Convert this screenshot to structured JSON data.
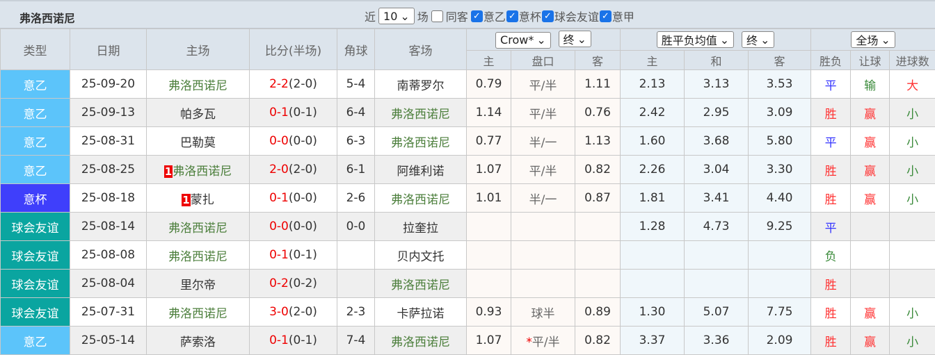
{
  "title": "弗洛西诺尼",
  "filters": {
    "recent_label": "近",
    "recent_value": "10",
    "games_label": "场",
    "same_label": "同客",
    "leagues": [
      "意乙",
      "意杯",
      "球会友谊",
      "意甲"
    ]
  },
  "headers": {
    "type": "类型",
    "date": "日期",
    "home": "主场",
    "score": "比分(半场)",
    "corner": "角球",
    "away": "客场",
    "asian_company": "Crow*",
    "asian_stage": "终",
    "euro_type": "胜平负均值",
    "euro_stage": "终",
    "result_scope": "全场",
    "asian_cols": [
      "主",
      "盘口",
      "客"
    ],
    "euro_cols": [
      "主",
      "和",
      "客"
    ],
    "result_cols": [
      "胜负",
      "让球",
      "进球数"
    ]
  },
  "colors": {
    "意乙": "#5cc4fa",
    "意杯": "#3f3ffb",
    "球会友谊": "#0aa5a0",
    "team": "#4c7f3c"
  },
  "rows": [
    {
      "type": "意乙",
      "date": "25-09-20",
      "home": "弗洛西诺尼",
      "home_flag": "",
      "score": "2-2",
      "half": "(2-0)",
      "corner": "5-4",
      "away": "南蒂罗尔",
      "a1": "0.79",
      "line": "平/半",
      "a2": "1.11",
      "e1": "2.13",
      "e2": "3.13",
      "e3": "3.53",
      "wl": "平",
      "hc": "输",
      "ou": "大"
    },
    {
      "type": "意乙",
      "date": "25-09-13",
      "home": "帕多瓦",
      "home_flag": "",
      "score": "0-1",
      "half": "(0-1)",
      "corner": "6-4",
      "away": "弗洛西诺尼",
      "a1": "1.14",
      "line": "平/半",
      "a2": "0.76",
      "e1": "2.42",
      "e2": "2.95",
      "e3": "3.09",
      "wl": "胜",
      "hc": "赢",
      "ou": "小"
    },
    {
      "type": "意乙",
      "date": "25-08-31",
      "home": "巴勒莫",
      "home_flag": "",
      "score": "0-0",
      "half": "(0-0)",
      "corner": "6-3",
      "away": "弗洛西诺尼",
      "a1": "0.77",
      "line": "半/一",
      "a2": "1.13",
      "e1": "1.60",
      "e2": "3.68",
      "e3": "5.80",
      "wl": "平",
      "hc": "赢",
      "ou": "小"
    },
    {
      "type": "意乙",
      "date": "25-08-25",
      "home": "弗洛西诺尼",
      "home_flag": "1",
      "score": "2-0",
      "half": "(2-0)",
      "corner": "6-1",
      "away": "阿维利诺",
      "a1": "1.07",
      "line": "平/半",
      "a2": "0.82",
      "e1": "2.26",
      "e2": "3.04",
      "e3": "3.30",
      "wl": "胜",
      "hc": "赢",
      "ou": "小"
    },
    {
      "type": "意杯",
      "date": "25-08-18",
      "home": "蒙扎",
      "home_flag": "1",
      "score": "0-1",
      "half": "(0-0)",
      "corner": "2-6",
      "away": "弗洛西诺尼",
      "a1": "1.01",
      "line": "半/一",
      "a2": "0.87",
      "e1": "1.81",
      "e2": "3.41",
      "e3": "4.40",
      "wl": "胜",
      "hc": "赢",
      "ou": "小"
    },
    {
      "type": "球会友谊",
      "date": "25-08-14",
      "home": "弗洛西诺尼",
      "home_flag": "",
      "score": "0-0",
      "half": "(0-0)",
      "corner": "0-0",
      "away": "拉奎拉",
      "a1": "",
      "line": "",
      "a2": "",
      "e1": "1.28",
      "e2": "4.73",
      "e3": "9.25",
      "wl": "平",
      "hc": "",
      "ou": ""
    },
    {
      "type": "球会友谊",
      "date": "25-08-08",
      "home": "弗洛西诺尼",
      "home_flag": "",
      "score": "0-1",
      "half": "(0-1)",
      "corner": "",
      "away": "贝内文托",
      "a1": "",
      "line": "",
      "a2": "",
      "e1": "",
      "e2": "",
      "e3": "",
      "wl": "负",
      "hc": "",
      "ou": ""
    },
    {
      "type": "球会友谊",
      "date": "25-08-04",
      "home": "里尔帝",
      "home_flag": "",
      "score": "0-2",
      "half": "(0-2)",
      "corner": "",
      "away": "弗洛西诺尼",
      "a1": "",
      "line": "",
      "a2": "",
      "e1": "",
      "e2": "",
      "e3": "",
      "wl": "胜",
      "hc": "",
      "ou": ""
    },
    {
      "type": "球会友谊",
      "date": "25-07-31",
      "home": "弗洛西诺尼",
      "home_flag": "",
      "score": "3-0",
      "half": "(2-0)",
      "corner": "2-3",
      "away": "卡萨拉诺",
      "a1": "0.93",
      "line": "球半",
      "a2": "0.89",
      "e1": "1.30",
      "e2": "5.07",
      "e3": "7.75",
      "wl": "胜",
      "hc": "赢",
      "ou": "小"
    },
    {
      "type": "意乙",
      "date": "25-05-14",
      "home": "萨索洛",
      "home_flag": "",
      "score": "0-1",
      "half": "(0-1)",
      "corner": "7-4",
      "away": "弗洛西诺尼",
      "a1": "1.07",
      "line_mark": "*",
      "line": "平/半",
      "a2": "0.82",
      "e1": "3.37",
      "e2": "3.36",
      "e3": "2.09",
      "wl": "胜",
      "hc": "赢",
      "ou": "小"
    }
  ]
}
